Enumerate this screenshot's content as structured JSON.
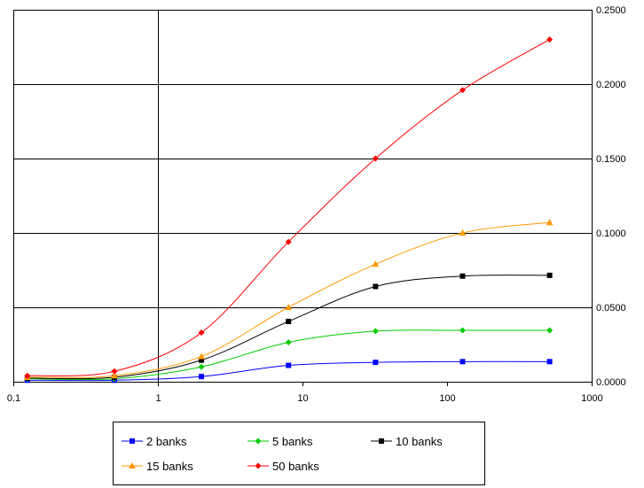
{
  "chart_data": {
    "type": "line",
    "x": [
      0.125,
      0.5,
      2,
      8,
      32,
      128,
      512
    ],
    "x_scale": "log",
    "xlim": [
      0.1,
      1000
    ],
    "x_ticks": [
      0.1,
      1,
      10,
      100,
      1000
    ],
    "x_tick_labels": [
      "0.1",
      "1",
      "10",
      "100",
      "1000"
    ],
    "ylim": [
      0,
      0.25
    ],
    "y_ticks": [
      0,
      0.05,
      0.1,
      0.15,
      0.2,
      0.25
    ],
    "y_tick_labels": [
      "0.0000",
      "0.0500",
      "0.1000",
      "0.1500",
      "0.2000",
      "0.2500"
    ],
    "y_axis_side": "right",
    "grid": "horizontal",
    "legend_position": "bottom",
    "series": [
      {
        "name": "2 banks",
        "color": "#0000ff",
        "marker": "square",
        "values": [
          0.001,
          0.001,
          0.0035,
          0.011,
          0.013,
          0.0135,
          0.0135
        ]
      },
      {
        "name": "5 banks",
        "color": "#00cc00",
        "marker": "diamond",
        "values": [
          0.002,
          0.002,
          0.01,
          0.0265,
          0.034,
          0.0345,
          0.0345
        ]
      },
      {
        "name": "10 banks",
        "color": "#000000",
        "marker": "square",
        "values": [
          0.0025,
          0.003,
          0.0145,
          0.0405,
          0.064,
          0.071,
          0.0715
        ]
      },
      {
        "name": "15 banks",
        "color": "#ff9900",
        "marker": "triangle",
        "values": [
          0.003,
          0.004,
          0.017,
          0.05,
          0.079,
          0.1,
          0.107
        ]
      },
      {
        "name": "50 banks",
        "color": "#ff0000",
        "marker": "diamond",
        "values": [
          0.004,
          0.007,
          0.033,
          0.094,
          0.15,
          0.196,
          0.23
        ]
      }
    ]
  }
}
